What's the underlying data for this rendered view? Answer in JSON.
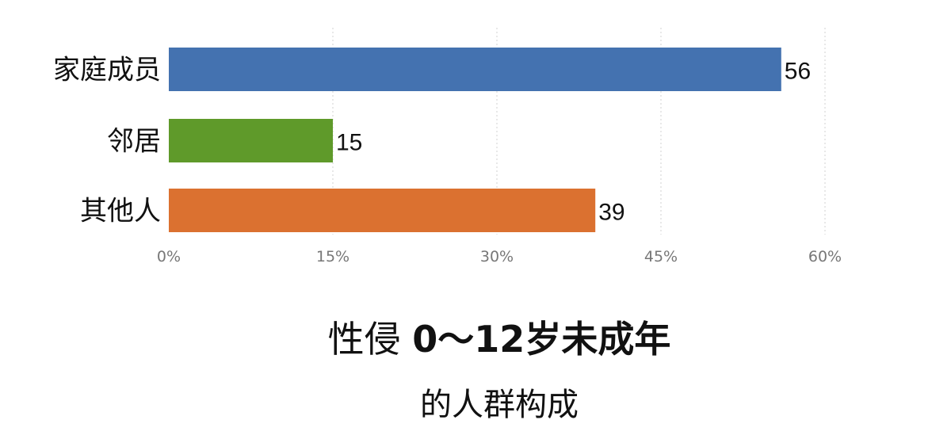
{
  "chart_data": {
    "type": "bar",
    "orientation": "horizontal",
    "categories": [
      "家庭成员",
      "邻居",
      "其他人"
    ],
    "values": [
      56,
      15,
      39
    ],
    "colors": [
      "#4472b0",
      "#5f9a2a",
      "#db7130"
    ],
    "xlim": [
      0,
      60
    ],
    "xticks": [
      0,
      15,
      30,
      45,
      60
    ],
    "xtick_labels": [
      "0%",
      "15%",
      "30%",
      "45%",
      "60%"
    ],
    "grid": "vertical dotted",
    "title_part1": "性侵",
    "title_part2": "0～12岁未成年",
    "subtitle": "的人群构成"
  }
}
